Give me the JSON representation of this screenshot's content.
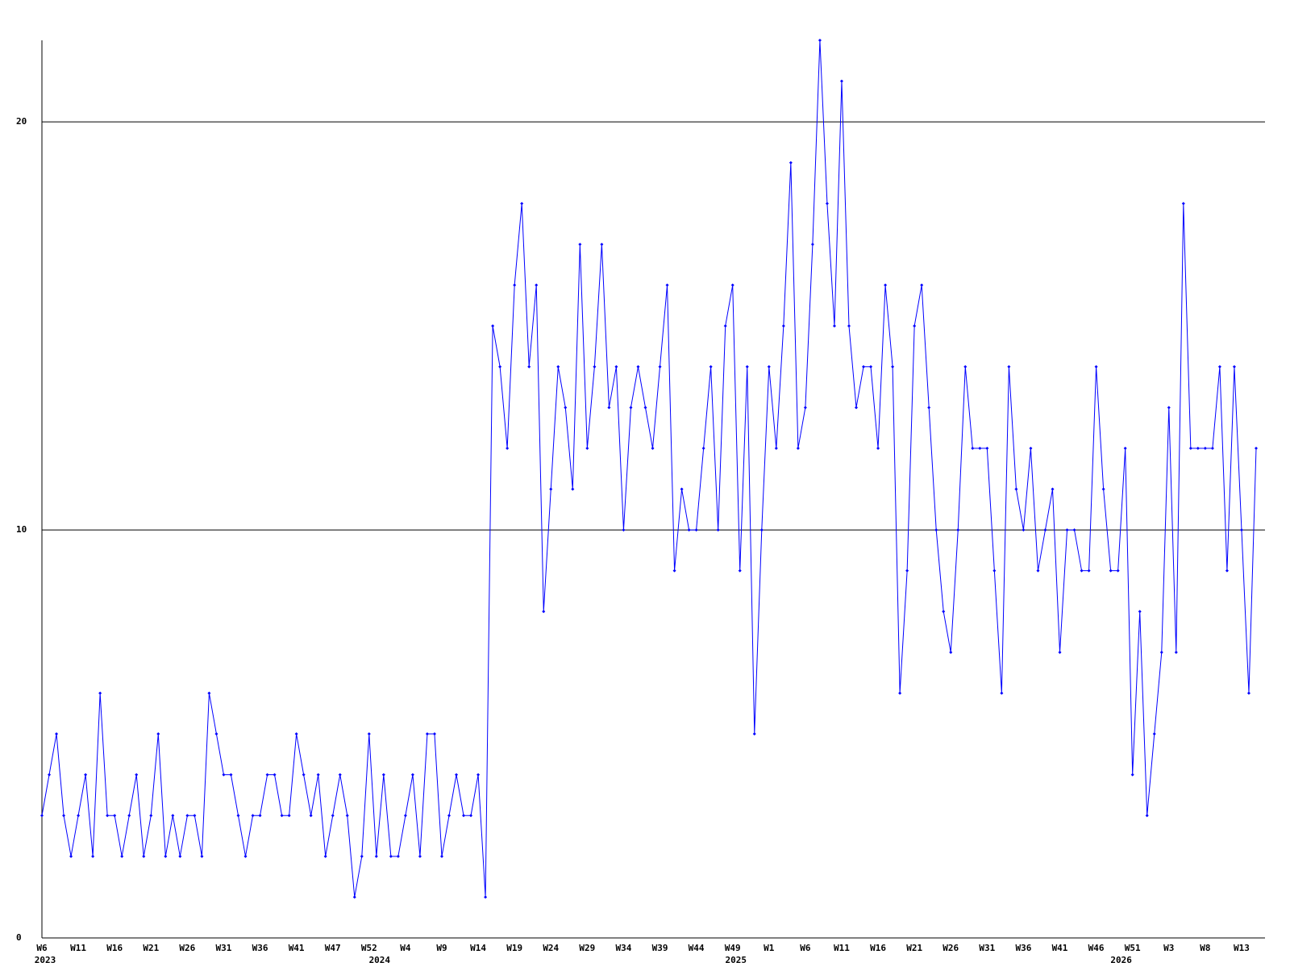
{
  "chart_data": {
    "type": "line",
    "categories": [
      "W6",
      null,
      null,
      null,
      null,
      "W11",
      null,
      null,
      null,
      null,
      "W16",
      null,
      null,
      null,
      null,
      "W21",
      null,
      null,
      null,
      null,
      "W26",
      null,
      null,
      null,
      null,
      "W31",
      null,
      null,
      null,
      null,
      "W36",
      null,
      null,
      null,
      null,
      "W41",
      null,
      null,
      null,
      null,
      "W47",
      null,
      null,
      null,
      null,
      "W52",
      null,
      null,
      null,
      null,
      "W4",
      null,
      null,
      null,
      null,
      "W9",
      null,
      null,
      null,
      null,
      "W14",
      null,
      null,
      null,
      null,
      "W19",
      null,
      null,
      null,
      null,
      "W24",
      null,
      null,
      null,
      null,
      "W29",
      null,
      null,
      null,
      null,
      "W34",
      null,
      null,
      null,
      null,
      "W39",
      null,
      null,
      null,
      null,
      "W44",
      null,
      null,
      null,
      null,
      "W49",
      null,
      null,
      null,
      null,
      "W1",
      null,
      null,
      null,
      null,
      "W6",
      null,
      null,
      null,
      null,
      "W11",
      null,
      null,
      null,
      null,
      "W16",
      null,
      null,
      null,
      null,
      "W21",
      null,
      null,
      null,
      null,
      "W26",
      null,
      null,
      null,
      null,
      "W31",
      null,
      null,
      null,
      null,
      "W36",
      null,
      null,
      null,
      null,
      "W41",
      null,
      null,
      null,
      null,
      "W46",
      null,
      null,
      null,
      null,
      "W51",
      null,
      null,
      null,
      null,
      "W3",
      null,
      null,
      null,
      null,
      "W8",
      null,
      null,
      null,
      null,
      "W13",
      null,
      null
    ],
    "year_labels": [
      "2023",
      null,
      null,
      null,
      null,
      null,
      null,
      null,
      null,
      null,
      null,
      null,
      null,
      null,
      null,
      null,
      null,
      null,
      null,
      null,
      null,
      null,
      null,
      null,
      null,
      null,
      null,
      null,
      null,
      null,
      null,
      null,
      null,
      null,
      null,
      null,
      null,
      null,
      null,
      null,
      null,
      null,
      null,
      null,
      null,
      null,
      "2024",
      null,
      null,
      null,
      null,
      null,
      null,
      null,
      null,
      null,
      null,
      null,
      null,
      null,
      null,
      null,
      null,
      null,
      null,
      null,
      null,
      null,
      null,
      null,
      null,
      null,
      null,
      null,
      null,
      null,
      null,
      null,
      null,
      null,
      null,
      null,
      null,
      null,
      null,
      null,
      null,
      null,
      null,
      null,
      null,
      null,
      null,
      null,
      null,
      "2025",
      null,
      null,
      null,
      null,
      null,
      null,
      null,
      null,
      null,
      null,
      null,
      null,
      null,
      null,
      null,
      null,
      null,
      null,
      null,
      null,
      null,
      null,
      null,
      null,
      null,
      null,
      null,
      null,
      null,
      null,
      null,
      null,
      null,
      null,
      null,
      null,
      null,
      null,
      null,
      null,
      null,
      null,
      null,
      null,
      null,
      null,
      null,
      null,
      null,
      null,
      null,
      null,
      "2026",
      null,
      null,
      null,
      null,
      null,
      null,
      null,
      null,
      null,
      null,
      null,
      null,
      null,
      null,
      null
    ],
    "values": [
      3,
      4,
      5,
      3,
      2,
      3,
      4,
      2,
      6,
      3,
      3,
      2,
      3,
      4,
      2,
      3,
      5,
      2,
      3,
      2,
      3,
      3,
      2,
      6,
      5,
      4,
      4,
      3,
      2,
      3,
      3,
      4,
      4,
      3,
      3,
      5,
      4,
      3,
      4,
      2,
      3,
      4,
      3,
      1,
      2,
      5,
      2,
      4,
      2,
      2,
      3,
      4,
      2,
      5,
      5,
      2,
      3,
      4,
      3,
      3,
      4,
      1,
      15,
      14,
      12,
      16,
      18,
      14,
      16,
      8,
      11,
      14,
      13,
      11,
      17,
      12,
      14,
      17,
      13,
      14,
      10,
      13,
      14,
      13,
      12,
      14,
      16,
      9,
      11,
      10,
      10,
      12,
      14,
      10,
      15,
      16,
      9,
      14,
      5,
      10,
      14,
      12,
      15,
      19,
      12,
      13,
      17,
      22,
      18,
      15,
      21,
      15,
      13,
      14,
      14,
      12,
      16,
      14,
      6,
      9,
      15,
      16,
      13,
      10,
      8,
      7,
      10,
      14,
      12,
      12,
      12,
      9,
      6,
      14,
      11,
      10,
      12,
      9,
      10,
      11,
      7,
      10,
      10,
      9,
      9,
      14,
      11,
      9,
      9,
      12,
      4,
      8,
      3,
      5,
      7,
      13,
      7,
      18,
      12,
      12,
      12,
      12,
      14,
      9,
      14,
      10,
      6,
      12
    ],
    "color": "#0000ff",
    "ylim": [
      0,
      22
    ],
    "yticks": [
      0,
      10,
      20
    ],
    "grid": true
  }
}
